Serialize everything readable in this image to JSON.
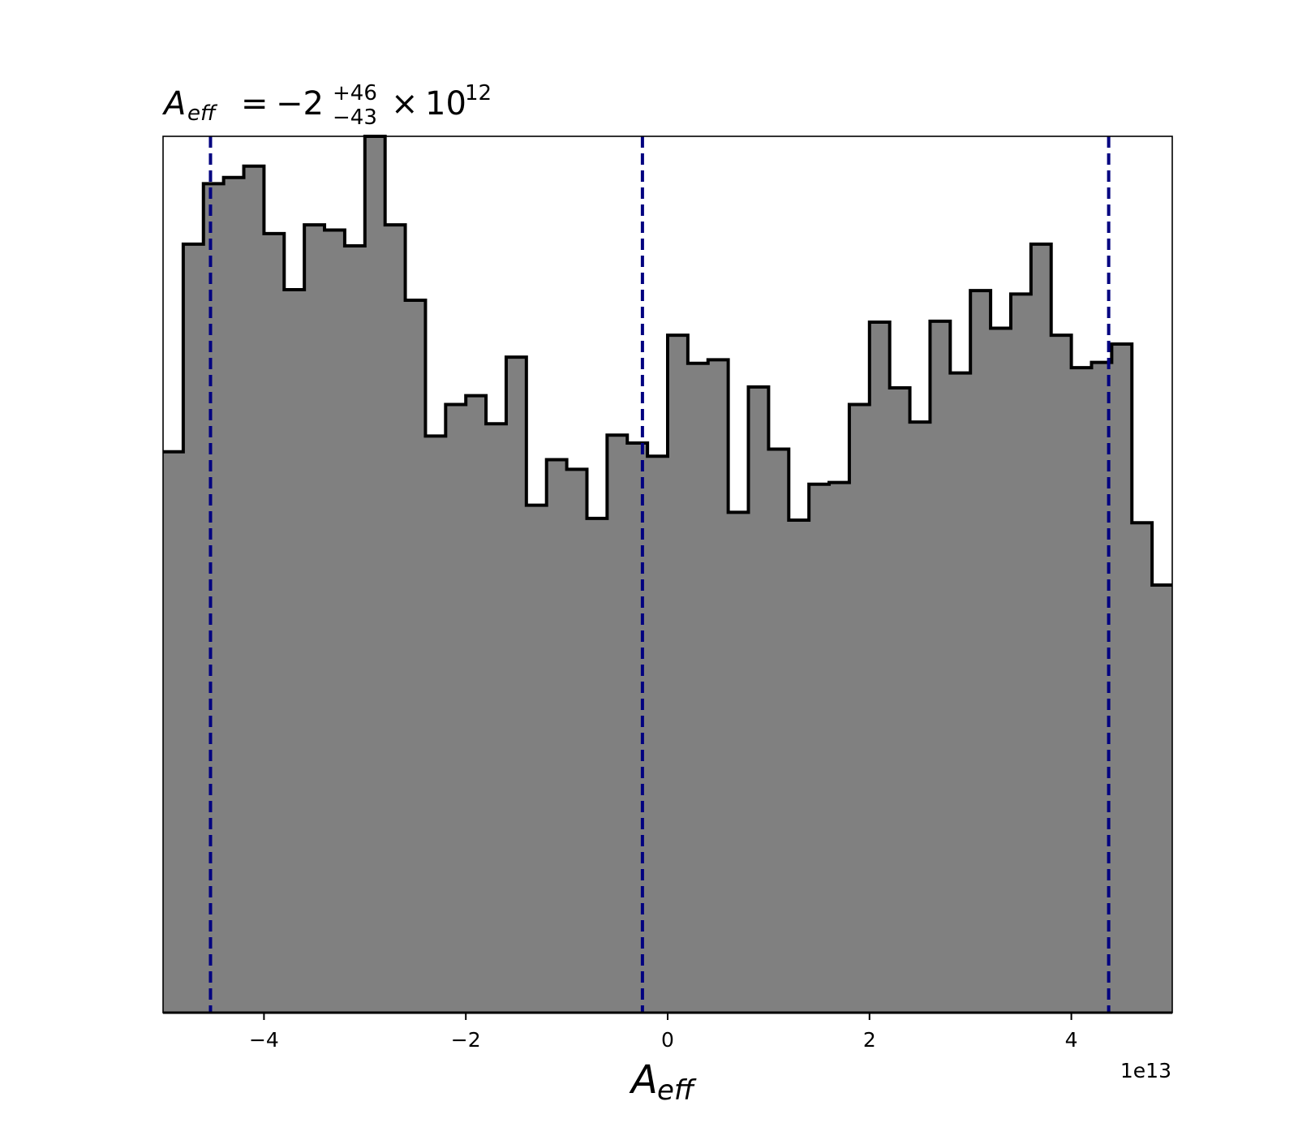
{
  "chart_data": {
    "type": "histogram",
    "title": {
      "symbol": "A",
      "symbol_subscript": "eff",
      "equals": "=",
      "value": "−2",
      "upper": "+46",
      "lower": "−43",
      "times": "×",
      "base": "10",
      "exponent": "12"
    },
    "xlabel": {
      "symbol": "A",
      "subscript": "eff"
    },
    "x_offset_label": "1e13",
    "x_scale_factor": 10000000000000.0,
    "xlim": [
      -5.0,
      5.0
    ],
    "ylim": [
      0,
      1.0
    ],
    "y_axis_visible": false,
    "grid": false,
    "xticks": [
      -4,
      -2,
      0,
      2,
      4
    ],
    "xtick_labels": [
      "−4",
      "−2",
      "0",
      "2",
      "4"
    ],
    "fill_color": "#808080",
    "edge_color": "#000000",
    "quantile_line_color": "#000080",
    "quantile_lines": [
      -4.53,
      -0.25,
      4.37
    ],
    "bins": {
      "start": -5.0,
      "width": 0.2,
      "counts": [
        0.64,
        0.877,
        0.946,
        0.953,
        0.966,
        0.889,
        0.825,
        0.899,
        0.893,
        0.875,
        1.0,
        0.899,
        0.813,
        0.658,
        0.694,
        0.704,
        0.672,
        0.748,
        0.579,
        0.631,
        0.62,
        0.564,
        0.659,
        0.65,
        0.635,
        0.773,
        0.741,
        0.745,
        0.571,
        0.714,
        0.643,
        0.562,
        0.603,
        0.605,
        0.694,
        0.788,
        0.713,
        0.674,
        0.789,
        0.73,
        0.824,
        0.781,
        0.82,
        0.877,
        0.773,
        0.736,
        0.742,
        0.763,
        0.559,
        0.488
      ]
    }
  }
}
